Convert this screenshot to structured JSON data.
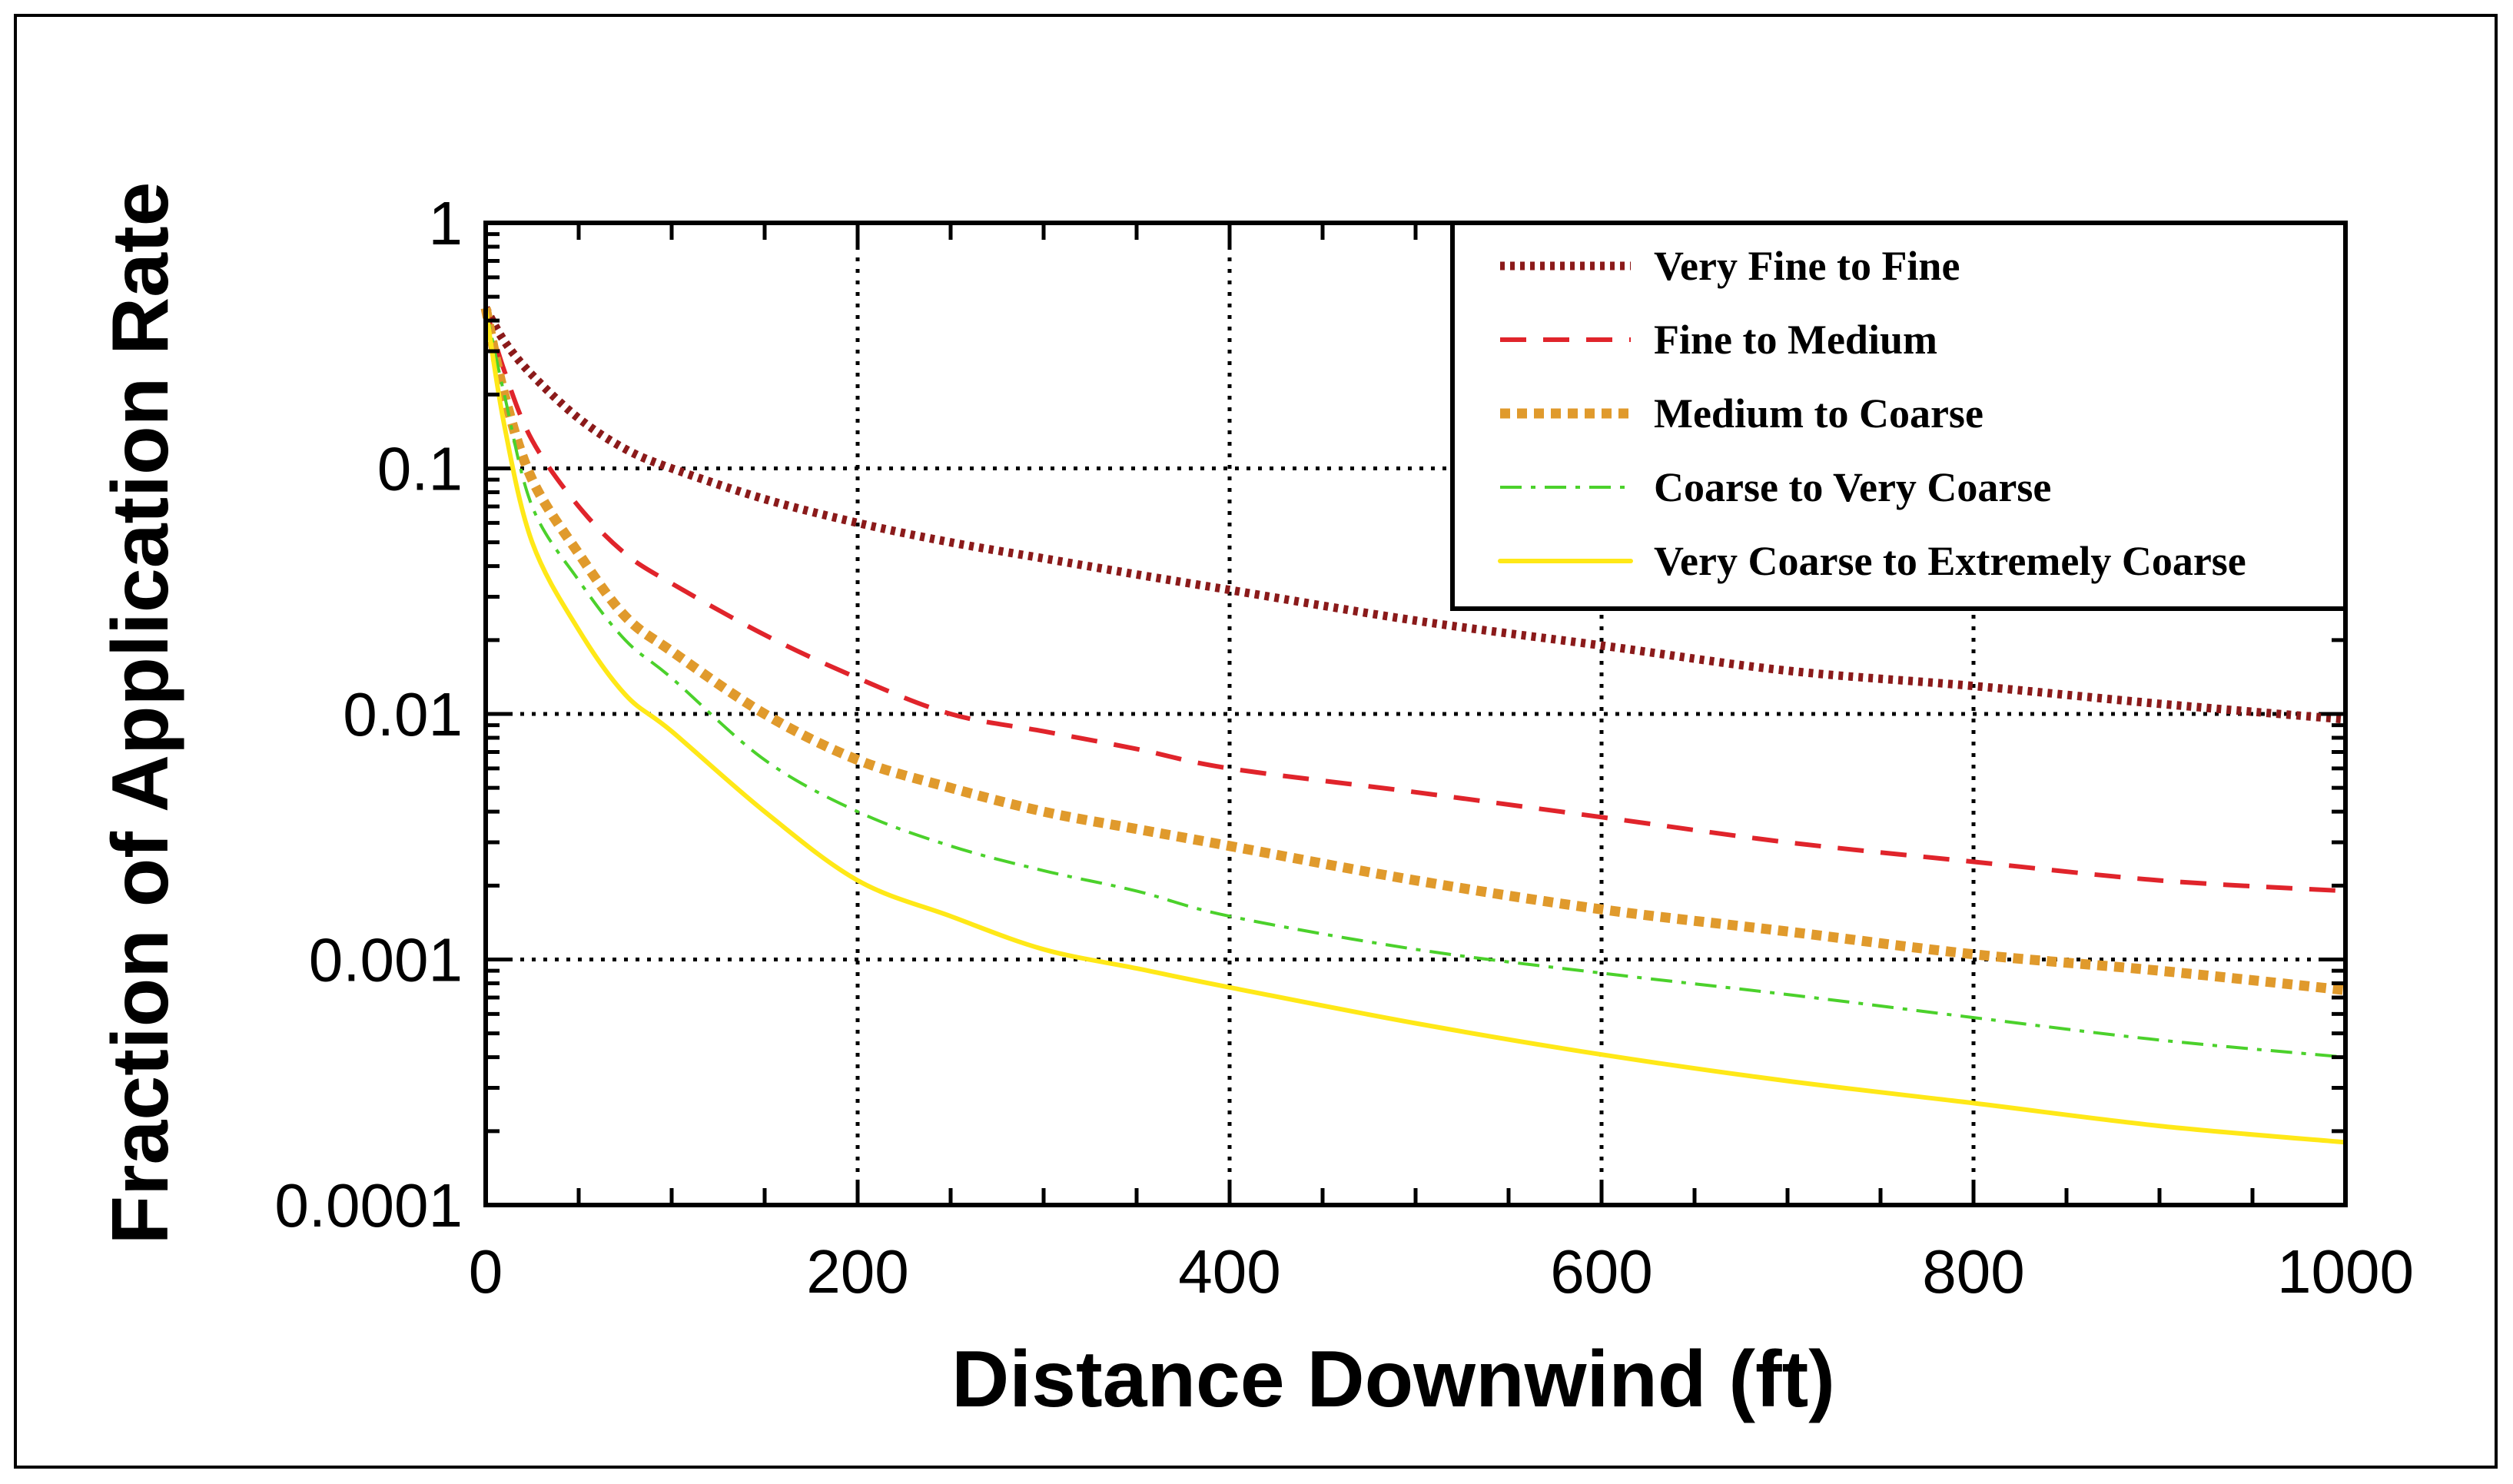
{
  "chart_data": {
    "type": "line",
    "title": "",
    "xlabel": "Distance Downwind (ft)",
    "ylabel": "Fraction of Application Rate",
    "xlim": [
      0,
      1000
    ],
    "ylim": [
      0.0001,
      1
    ],
    "yscale": "log",
    "grid": "dotted at x = 200, 400, 600, 800 and y = 0.1, 0.01, 0.001",
    "x_ticks": [
      0,
      200,
      400,
      600,
      800,
      1000
    ],
    "x_tick_labels": [
      "0",
      "200",
      "400",
      "600",
      "800",
      "1000"
    ],
    "y_ticks": [
      0.0001,
      0.001,
      0.01,
      0.1,
      1
    ],
    "y_tick_labels": [
      "0.0001",
      "0.001",
      "0.01",
      "0.1",
      "1"
    ],
    "legend_position": "top-right",
    "x": [
      0,
      10,
      25,
      50,
      75,
      100,
      150,
      200,
      250,
      300,
      350,
      400,
      500,
      600,
      700,
      800,
      900,
      1000
    ],
    "series": [
      {
        "name": "Very Fine to Fine",
        "color": "#8b1a1a",
        "style": "dotted",
        "values": [
          0.45,
          0.33,
          0.24,
          0.16,
          0.12,
          0.1,
          0.075,
          0.06,
          0.05,
          0.043,
          0.037,
          0.032,
          0.024,
          0.019,
          0.015,
          0.013,
          0.011,
          0.0095
        ]
      },
      {
        "name": "Fine to Medium",
        "color": "#e0242b",
        "style": "dashed",
        "values": [
          0.45,
          0.25,
          0.13,
          0.07,
          0.045,
          0.034,
          0.021,
          0.014,
          0.01,
          0.0085,
          0.0072,
          0.006,
          0.0048,
          0.0038,
          0.003,
          0.0025,
          0.0021,
          0.0019
        ]
      },
      {
        "name": "Medium to Coarse",
        "color": "#e09a2c",
        "style": "thick-dotted",
        "values": [
          0.45,
          0.2,
          0.09,
          0.045,
          0.025,
          0.018,
          0.01,
          0.0065,
          0.005,
          0.004,
          0.0034,
          0.0029,
          0.0021,
          0.0016,
          0.0013,
          0.00105,
          0.0009,
          0.00075
        ]
      },
      {
        "name": "Coarse to Very Coarse",
        "color": "#4bd12b",
        "style": "dash-dot",
        "values": [
          0.45,
          0.2,
          0.07,
          0.035,
          0.02,
          0.014,
          0.0065,
          0.004,
          0.0029,
          0.0023,
          0.0019,
          0.0015,
          0.0011,
          0.00088,
          0.00072,
          0.00058,
          0.00047,
          0.0004
        ]
      },
      {
        "name": "Very Coarse to Extremely Coarse",
        "color": "#ffe817",
        "style": "solid",
        "values": [
          0.45,
          0.15,
          0.05,
          0.022,
          0.012,
          0.0085,
          0.004,
          0.0021,
          0.0015,
          0.0011,
          0.00092,
          0.00077,
          0.00055,
          0.00041,
          0.00032,
          0.00026,
          0.00021,
          0.00018
        ]
      }
    ]
  }
}
